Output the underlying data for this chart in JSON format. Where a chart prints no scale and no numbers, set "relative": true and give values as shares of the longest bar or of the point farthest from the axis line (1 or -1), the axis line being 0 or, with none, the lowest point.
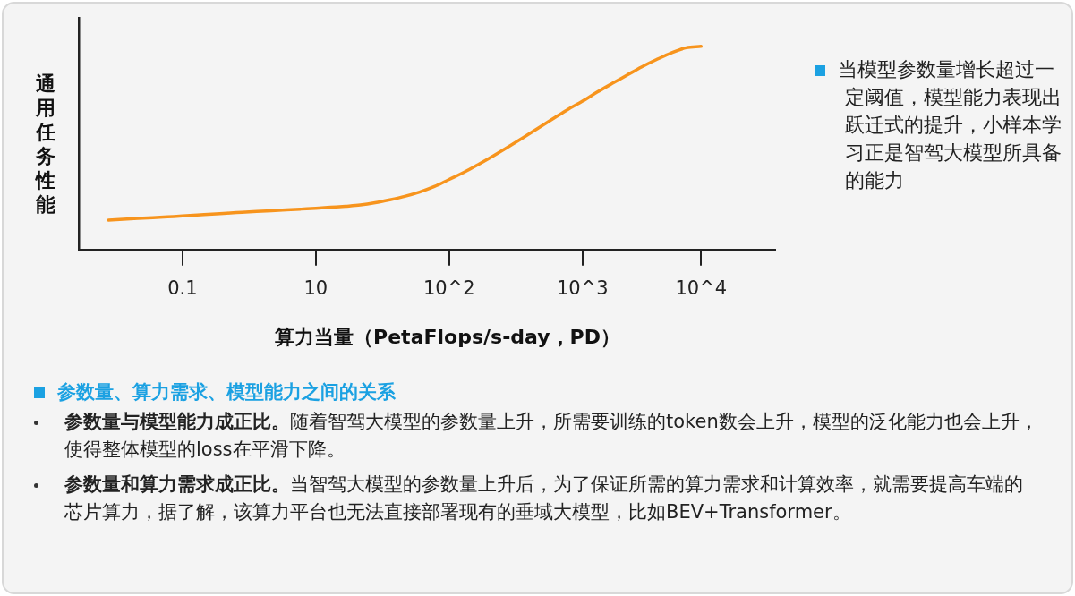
{
  "chart_data": {
    "type": "line",
    "relative": true,
    "ylabel": "通用任务性能",
    "xlabel": "算力当量（PetaFlops/s-day，PD）",
    "categories": [
      null,
      null,
      null,
      null,
      null,
      null,
      null,
      "0.1",
      null,
      null,
      null,
      null,
      null,
      null,
      null,
      null,
      "10",
      null,
      null,
      null,
      null,
      null,
      null,
      null,
      null,
      "10^2",
      null,
      null,
      null,
      null,
      null,
      null,
      null,
      null,
      "10^3",
      null,
      null,
      null,
      null,
      null,
      null,
      null,
      "10^4",
      null,
      null,
      null,
      null,
      null
    ],
    "series": [
      {
        "color": "#f7941d",
        "values": [
          null,
          null,
          0.145,
          0.149,
          0.153,
          0.157,
          0.161,
          0.165,
          0.17,
          0.174,
          0.179,
          0.183,
          0.187,
          0.191,
          0.195,
          0.199,
          0.203,
          0.208,
          0.213,
          0.219,
          0.23,
          0.245,
          0.262,
          0.283,
          0.31,
          0.345,
          0.38,
          0.42,
          0.462,
          0.506,
          0.551,
          0.597,
          0.643,
          0.689,
          0.73,
          0.775,
          0.817,
          0.858,
          0.899,
          0.935,
          0.968,
          0.993,
          1,
          null,
          null,
          null,
          null,
          null
        ]
      }
    ],
    "grid": false,
    "legend": false,
    "marker": "none",
    "line_style": "solid",
    "annotations": [
      "当模型参数量增长超过一定阈值，模型能力表现出跃迁式的提升，小样本学习正是智驾大模型所具备的能力",
      "参数量、算力需求、模型能力之间的关系",
      "参数量与模型能力成正比。",
      "随着智驾大模型的参数量上升，所需要训练的token数会上升，模型的泛化能力也会上升，使得整体模型的loss在平滑下降。",
      "参数量和算力需求成正比。",
      "当智驾大模型的参数量上升后，为了保证所需的算力需求和计算效率，就需要提高车端的芯片算力，据了解，该算力平台也无法直接部署现有的垂域大模型，比如BEV+Transformer。"
    ]
  }
}
